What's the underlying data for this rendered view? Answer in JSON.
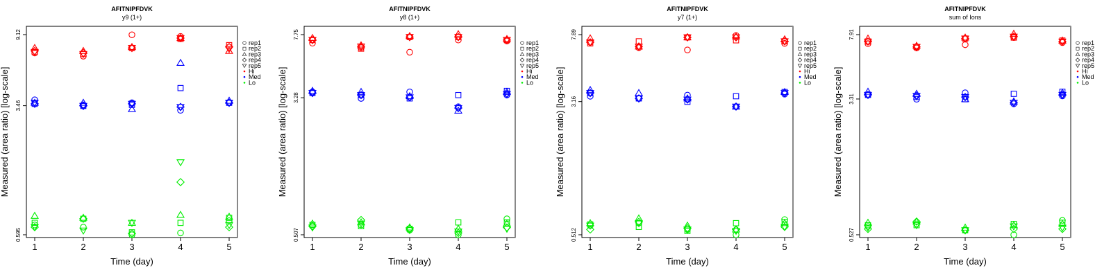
{
  "chart_data": [
    {
      "type": "scatter",
      "title": "AFITNIPFDVK",
      "subtitle": "y9 (1+)",
      "xlabel": "Time (day)",
      "ylabel": "Measured (area ratio) [log-scale]",
      "x_ticks": [
        "1",
        "2",
        "3",
        "4",
        "5"
      ],
      "y_ticks": [
        "0.595",
        "3.46",
        "9.12"
      ],
      "y_tick_values": [
        0.595,
        3.46,
        9.12
      ],
      "ylim": [
        0.56,
        10.0
      ],
      "y_scale": "log",
      "series": [
        {
          "group": "Hi",
          "color": "#ff0000",
          "reps": {
            "rep1": [
              7.1,
              6.8,
              9.1,
              8.9,
              7.7
            ],
            "rep2": [
              7.2,
              7.0,
              7.6,
              8.6,
              7.9
            ],
            "rep3": [
              7.6,
              7.3,
              7.7,
              8.7,
              7.3
            ],
            "rep4": [
              7.3,
              7.1,
              7.6,
              8.7,
              7.7
            ],
            "rep5": [
              7.2,
              7.0,
              7.6,
              8.7,
              7.5
            ]
          }
        },
        {
          "group": "Med",
          "color": "#0000ff",
          "reps": {
            "rep1": [
              3.75,
              3.5,
              3.6,
              3.25,
              3.6
            ],
            "rep2": [
              3.55,
              3.45,
              3.5,
              4.4,
              3.6
            ],
            "rep3": [
              3.6,
              3.6,
              3.3,
              6.2,
              3.7
            ],
            "rep4": [
              3.55,
              3.45,
              3.55,
              3.4,
              3.6
            ],
            "rep5": [
              3.6,
              3.45,
              3.55,
              3.4,
              3.6
            ]
          }
        },
        {
          "group": "Lo",
          "color": "#00ee00",
          "reps": {
            "rep1": [
              0.68,
              0.66,
              0.595,
              0.61,
              0.72
            ],
            "rep2": [
              0.7,
              0.74,
              0.615,
              0.7,
              0.75
            ],
            "rep3": [
              0.77,
              0.75,
              0.7,
              0.78,
              0.76
            ],
            "rep4": [
              0.66,
              0.74,
              0.605,
              1.22,
              0.66
            ],
            "rep5": [
              0.66,
              0.63,
              0.7,
              1.6,
              0.68
            ]
          }
        }
      ],
      "legend": [
        "rep1",
        "rep2",
        "rep3",
        "rep4",
        "rep5",
        "Hi",
        "Med",
        "Lo"
      ],
      "legend_position": "right"
    },
    {
      "type": "scatter",
      "title": "AFITNIPFDVK",
      "subtitle": "y8 (1+)",
      "xlabel": "Time (day)",
      "ylabel": "Measured (area ratio) [log-scale]",
      "x_ticks": [
        "1",
        "2",
        "3",
        "4",
        "5"
      ],
      "y_ticks": [
        "0.507",
        "3.28",
        "7.75"
      ],
      "y_tick_values": [
        0.507,
        3.28,
        7.75
      ],
      "ylim": [
        0.48,
        8.5
      ],
      "y_scale": "log",
      "series": [
        {
          "group": "Hi",
          "color": "#ff0000",
          "reps": {
            "rep1": [
              6.9,
              6.5,
              6.1,
              7.2,
              7.1
            ],
            "rep2": [
              7.2,
              6.4,
              7.5,
              7.5,
              7.2
            ],
            "rep3": [
              7.4,
              6.7,
              7.6,
              7.8,
              7.3
            ],
            "rep4": [
              7.2,
              6.6,
              7.5,
              7.5,
              7.2
            ],
            "rep5": [
              7.2,
              6.6,
              7.5,
              7.5,
              7.2
            ]
          }
        },
        {
          "group": "Med",
          "color": "#0000ff",
          "reps": {
            "rep1": [
              3.55,
              3.25,
              3.55,
              2.9,
              3.4
            ],
            "rep2": [
              3.5,
              3.4,
              3.25,
              3.4,
              3.6
            ],
            "rep3": [
              3.6,
              3.55,
              3.35,
              2.75,
              3.55
            ],
            "rep4": [
              3.5,
              3.4,
              3.3,
              2.85,
              3.45
            ],
            "rep5": [
              3.5,
              3.4,
              3.3,
              2.85,
              3.45
            ]
          }
        },
        {
          "group": "Lo",
          "color": "#00ee00",
          "reps": {
            "rep1": [
              0.57,
              0.58,
              0.54,
              0.507,
              0.63
            ],
            "rep2": [
              0.58,
              0.57,
              0.55,
              0.6,
              0.6
            ],
            "rep3": [
              0.59,
              0.6,
              0.56,
              0.55,
              0.59
            ],
            "rep4": [
              0.57,
              0.62,
              0.55,
              0.52,
              0.56
            ],
            "rep5": [
              0.56,
              0.59,
              0.54,
              0.53,
              0.55
            ]
          }
        }
      ],
      "legend": [
        "rep1",
        "rep2",
        "rep3",
        "rep4",
        "rep5",
        "Hi",
        "Med",
        "Lo"
      ],
      "legend_position": "right"
    },
    {
      "type": "scatter",
      "title": "AFITNIPFDVK",
      "subtitle": "y7 (1+)",
      "xlabel": "Time (day)",
      "ylabel": "Measured (area ratio) [log-scale]",
      "x_ticks": [
        "1",
        "2",
        "3",
        "4",
        "5"
      ],
      "y_ticks": [
        "0.512",
        "3.16",
        "7.89"
      ],
      "y_tick_values": [
        0.512,
        3.16,
        7.89
      ],
      "ylim": [
        0.485,
        8.7
      ],
      "y_scale": "log",
      "series": [
        {
          "group": "Hi",
          "color": "#ff0000",
          "reps": {
            "rep1": [
              7.1,
              6.6,
              6.4,
              7.8,
              7.0
            ],
            "rep2": [
              7.0,
              7.2,
              7.6,
              7.3,
              7.2
            ],
            "rep3": [
              7.5,
              6.7,
              7.6,
              7.7,
              7.4
            ],
            "rep4": [
              7.1,
              6.7,
              7.6,
              7.6,
              7.2
            ],
            "rep5": [
              7.1,
              6.7,
              7.6,
              7.6,
              7.2
            ]
          }
        },
        {
          "group": "Med",
          "color": "#0000ff",
          "reps": {
            "rep1": [
              3.4,
              3.3,
              3.45,
              2.95,
              3.5
            ],
            "rep2": [
              3.55,
              3.3,
              3.15,
              3.4,
              3.6
            ],
            "rep3": [
              3.7,
              3.55,
              3.3,
              2.95,
              3.6
            ],
            "rep4": [
              3.55,
              3.3,
              3.25,
              2.95,
              3.55
            ],
            "rep5": [
              3.55,
              3.3,
              3.25,
              2.95,
              3.55
            ]
          }
        },
        {
          "group": "Lo",
          "color": "#00ee00",
          "reps": {
            "rep1": [
              0.58,
              0.6,
              0.55,
              0.512,
              0.63
            ],
            "rep2": [
              0.59,
              0.57,
              0.54,
              0.6,
              0.61
            ],
            "rep3": [
              0.6,
              0.64,
              0.58,
              0.55,
              0.6
            ],
            "rep4": [
              0.55,
              0.61,
              0.56,
              0.55,
              0.57
            ],
            "rep5": [
              0.58,
              0.6,
              0.55,
              0.54,
              0.57
            ]
          }
        }
      ],
      "legend": [
        "rep1",
        "rep2",
        "rep3",
        "rep4",
        "rep5",
        "Hi",
        "Med",
        "Lo"
      ],
      "legend_position": "right"
    },
    {
      "type": "scatter",
      "title": "AFITNIPFDVK",
      "subtitle": "sum of Ions",
      "xlabel": "Time (day)",
      "ylabel": "Measured (area ratio) [log-scale]",
      "x_ticks": [
        "1",
        "2",
        "3",
        "4",
        "5"
      ],
      "y_ticks": [
        "0.527",
        "3.31",
        "7.91"
      ],
      "y_tick_values": [
        0.527,
        3.31,
        7.91
      ],
      "ylim": [
        0.5,
        8.7
      ],
      "y_scale": "log",
      "series": [
        {
          "group": "Hi",
          "color": "#ff0000",
          "reps": {
            "rep1": [
              7.0,
              6.6,
              6.9,
              7.6,
              7.1
            ],
            "rep2": [
              7.2,
              6.7,
              7.5,
              7.6,
              7.3
            ],
            "rep3": [
              7.5,
              6.8,
              7.6,
              8.0,
              7.3
            ],
            "rep4": [
              7.2,
              6.7,
              7.5,
              7.7,
              7.2
            ],
            "rep5": [
              7.2,
              6.7,
              7.5,
              7.7,
              7.2
            ]
          }
        },
        {
          "group": "Med",
          "color": "#0000ff",
          "reps": {
            "rep1": [
              3.5,
              3.3,
              3.6,
              3.1,
              3.45
            ],
            "rep2": [
              3.5,
              3.4,
              3.3,
              3.55,
              3.65
            ],
            "rep3": [
              3.65,
              3.55,
              3.3,
              3.2,
              3.6
            ],
            "rep4": [
              3.5,
              3.45,
              3.4,
              3.15,
              3.5
            ],
            "rep5": [
              3.5,
              3.45,
              3.4,
              3.15,
              3.5
            ]
          }
        },
        {
          "group": "Lo",
          "color": "#00ee00",
          "reps": {
            "rep1": [
              0.59,
              0.61,
              0.56,
              0.527,
              0.64
            ],
            "rep2": [
              0.6,
              0.6,
              0.56,
              0.61,
              0.62
            ],
            "rep3": [
              0.62,
              0.63,
              0.58,
              0.6,
              0.61
            ],
            "rep4": [
              0.57,
              0.63,
              0.56,
              0.57,
              0.57
            ],
            "rep5": [
              0.58,
              0.6,
              0.56,
              0.59,
              0.58
            ]
          }
        }
      ],
      "legend": [
        "rep1",
        "rep2",
        "rep3",
        "rep4",
        "rep5",
        "Hi",
        "Med",
        "Lo"
      ],
      "legend_position": "right"
    }
  ]
}
